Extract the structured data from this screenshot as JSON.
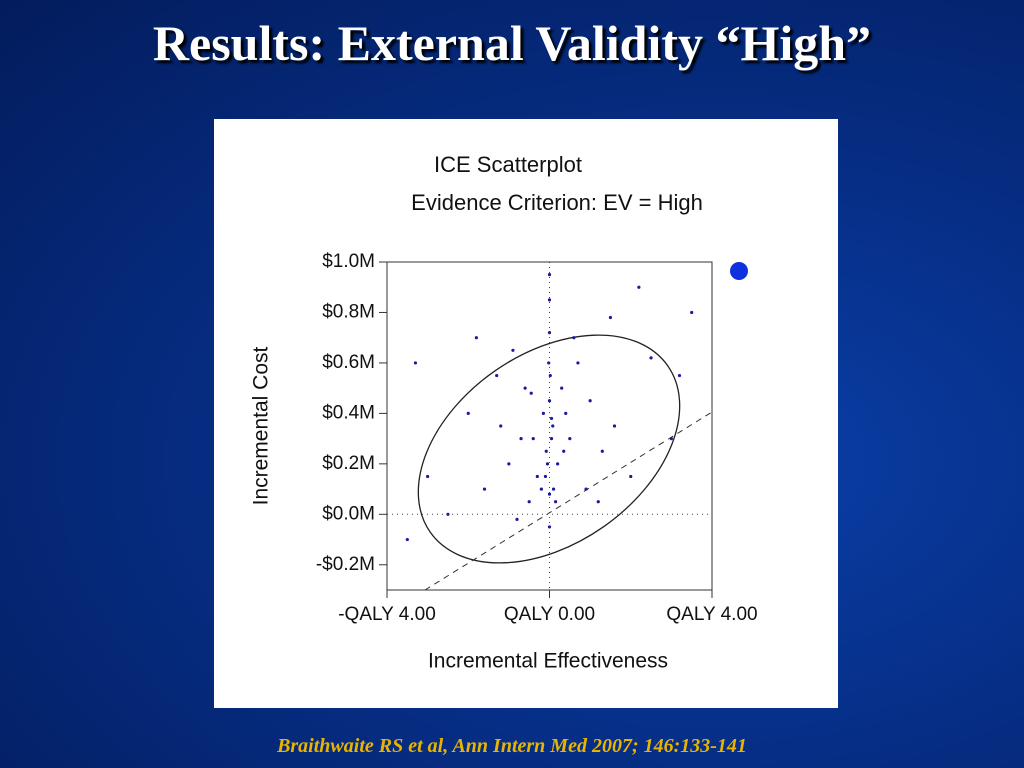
{
  "slide": {
    "title": "Results: External Validity “High”",
    "citation": "Braithwaite RS et al, Ann Intern Med 2007; 146:133-141"
  },
  "chart_data": {
    "type": "scatter",
    "title": "ICE Scatterplot",
    "subtitle": "Evidence Criterion: EV = High",
    "xlabel": "Incremental Effectiveness",
    "ylabel": "Incremental Cost",
    "color": "#1a1aa0",
    "xlim": [
      -4,
      4
    ],
    "ylim": [
      -0.3,
      1.0
    ],
    "xticks": [
      {
        "value": -4,
        "label": "-QALY 4.00"
      },
      {
        "value": 0,
        "label": "QALY 0.00"
      },
      {
        "value": 4,
        "label": "QALY 4.00"
      }
    ],
    "yticks": [
      {
        "value": 1.0,
        "label": "$1.0M"
      },
      {
        "value": 0.8,
        "label": "$0.8M"
      },
      {
        "value": 0.6,
        "label": "$0.6M"
      },
      {
        "value": 0.4,
        "label": "$0.4M"
      },
      {
        "value": 0.2,
        "label": "$0.2M"
      },
      {
        "value": 0,
        "label": "$0.0M"
      },
      {
        "value": -0.2,
        "label": "-$0.2M"
      }
    ],
    "x": [
      -0.1,
      0.05,
      0,
      -0.05,
      0.1,
      0.02,
      -0.02,
      0.08,
      -0.08,
      0.15,
      -0.15,
      0.3,
      -0.3,
      0.5,
      -0.5,
      0.7,
      -0.7,
      1.0,
      -1.0,
      1.3,
      -1.3,
      1.6,
      -1.6,
      2.0,
      -2.0,
      2.5,
      -2.5,
      3.0,
      -3.0,
      3.5,
      -3.5,
      0.2,
      -0.2,
      0.4,
      -0.4,
      0.6,
      -0.6,
      0.9,
      -0.9,
      1.2,
      -1.2,
      0,
      0,
      0,
      0,
      0,
      2.2,
      -1.8,
      3.2,
      -3.3,
      1.5,
      -0.8,
      0.35,
      -0.45,
      0.05
    ],
    "values": [
      0.15,
      0.3,
      0.45,
      0.2,
      0.1,
      0.55,
      0.6,
      0.35,
      0.25,
      0.05,
      0.4,
      0.5,
      0.15,
      0.3,
      0.05,
      0.6,
      0.3,
      0.45,
      0.2,
      0.25,
      0.55,
      0.35,
      0.1,
      0.15,
      0.4,
      0.62,
      0,
      0.3,
      0.15,
      0.8,
      -0.1,
      0.2,
      0.1,
      0.4,
      0.3,
      0.7,
      0.5,
      0.1,
      0.65,
      0.05,
      0.35,
      0.95,
      0.85,
      0.72,
      -0.05,
      0.08,
      0.9,
      0.7,
      0.55,
      0.6,
      0.78,
      -0.02,
      0.25,
      0.48,
      0.38
    ]
  }
}
